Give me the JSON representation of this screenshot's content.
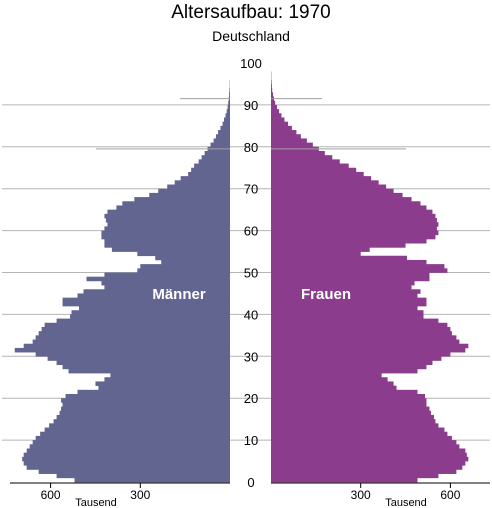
{
  "chart_data": {
    "type": "bar",
    "orientation": "population-pyramid",
    "title": "Altersaufbau: 1970",
    "subtitle": "Deutschland",
    "age_ticks": [
      0,
      10,
      20,
      30,
      40,
      50,
      60,
      70,
      80,
      90,
      100
    ],
    "x_ticks": [
      600,
      300
    ],
    "x_unit": "Tausend",
    "xlim": [
      0,
      800
    ],
    "ylim": [
      0,
      100
    ],
    "grid": "horizontal",
    "colors": {
      "maenner": "#636591",
      "frauen": "#8c3c8c"
    },
    "ages": [
      0,
      1,
      2,
      3,
      4,
      5,
      6,
      7,
      8,
      9,
      10,
      11,
      12,
      13,
      14,
      15,
      16,
      17,
      18,
      19,
      20,
      21,
      22,
      23,
      24,
      25,
      26,
      27,
      28,
      29,
      30,
      31,
      32,
      33,
      34,
      35,
      36,
      37,
      38,
      39,
      40,
      41,
      42,
      43,
      44,
      45,
      46,
      47,
      48,
      49,
      50,
      51,
      52,
      53,
      54,
      55,
      56,
      57,
      58,
      59,
      60,
      61,
      62,
      63,
      64,
      65,
      66,
      67,
      68,
      69,
      70,
      71,
      72,
      73,
      74,
      75,
      76,
      77,
      78,
      79,
      80,
      81,
      82,
      83,
      84,
      85,
      86,
      87,
      88,
      89,
      90,
      91,
      92,
      93,
      94,
      95,
      96,
      97,
      98,
      99
    ],
    "series": [
      {
        "name": "Männer",
        "values": [
          520,
          580,
          640,
          680,
          690,
          695,
          690,
          680,
          670,
          660,
          650,
          635,
          620,
          605,
          590,
          580,
          570,
          565,
          560,
          565,
          550,
          510,
          440,
          450,
          420,
          400,
          540,
          560,
          580,
          610,
          650,
          720,
          690,
          660,
          650,
          640,
          630,
          620,
          580,
          535,
          530,
          505,
          560,
          560,
          510,
          490,
          420,
          430,
          480,
          420,
          310,
          300,
          230,
          250,
          310,
          395,
          420,
          420,
          430,
          430,
          420,
          410,
          415,
          420,
          410,
          380,
          360,
          320,
          270,
          240,
          210,
          185,
          165,
          140,
          130,
          120,
          105,
          95,
          85,
          75,
          65,
          55,
          47,
          40,
          32,
          25,
          20,
          15,
          11,
          8,
          6,
          4,
          3,
          2,
          1,
          1,
          0,
          0,
          0,
          0
        ]
      },
      {
        "name": "Frauen",
        "values": [
          490,
          560,
          620,
          640,
          650,
          660,
          655,
          650,
          630,
          620,
          605,
          590,
          580,
          560,
          550,
          545,
          535,
          530,
          520,
          520,
          515,
          490,
          420,
          410,
          390,
          370,
          490,
          520,
          540,
          570,
          600,
          650,
          660,
          630,
          620,
          605,
          600,
          590,
          560,
          510,
          510,
          490,
          520,
          520,
          490,
          500,
          470,
          480,
          530,
          530,
          590,
          580,
          520,
          455,
          300,
          330,
          450,
          520,
          550,
          560,
          555,
          560,
          555,
          550,
          540,
          520,
          500,
          470,
          440,
          410,
          385,
          360,
          335,
          310,
          285,
          260,
          230,
          205,
          180,
          160,
          140,
          120,
          100,
          85,
          70,
          57,
          45,
          35,
          27,
          20,
          14,
          10,
          7,
          4,
          3,
          2,
          1,
          1,
          0,
          0
        ]
      }
    ],
    "reference_lines": [
      {
        "age": 91.5,
        "label": ""
      },
      {
        "age": 79.5,
        "label": ""
      }
    ],
    "annotations": []
  }
}
